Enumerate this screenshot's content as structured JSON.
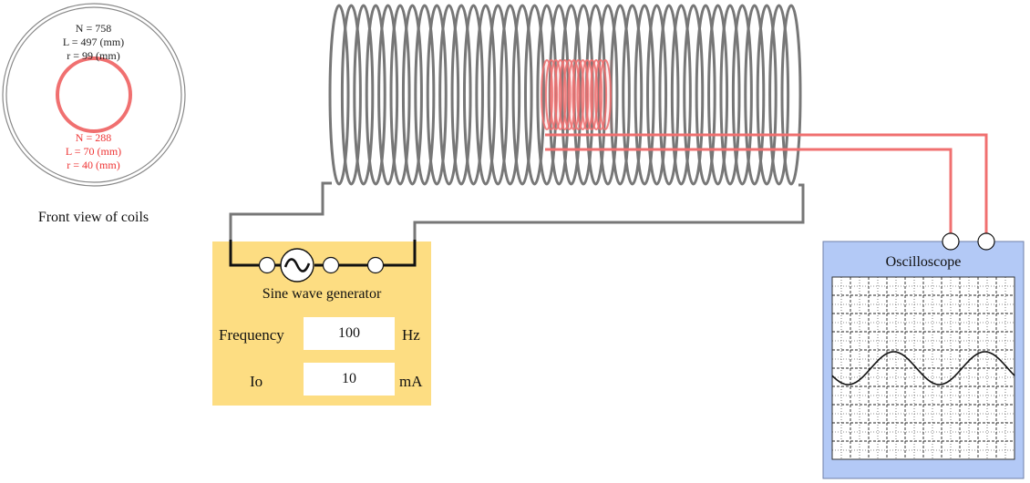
{
  "front_view": {
    "label": "Front view of coils",
    "outer_coil": {
      "n_text": "N = 758",
      "l_text": "L = 497 (mm)",
      "r_text": "r = 99 (mm)",
      "color": "#777777"
    },
    "inner_coil": {
      "n_text": "N = 288",
      "l_text": "L = 70 (mm)",
      "r_text": "r = 40 (mm)",
      "color": "#f07070"
    }
  },
  "generator": {
    "title": "Sine wave generator",
    "frequency": {
      "label": "Frequency",
      "value": "100",
      "unit": "Hz"
    },
    "current": {
      "label": "Io",
      "value": "10",
      "unit": "mA"
    },
    "source_icon": "sine-source-icon",
    "panel_color": "#fddd82"
  },
  "oscilloscope": {
    "title": "Oscilloscope",
    "panel_color": "#b3c9f6",
    "trace": {
      "shape": "sine",
      "cycles": 2
    }
  },
  "colors": {
    "primary_wire": "#777777",
    "secondary_wire": "#f07070",
    "generator_wire": "#111111"
  }
}
